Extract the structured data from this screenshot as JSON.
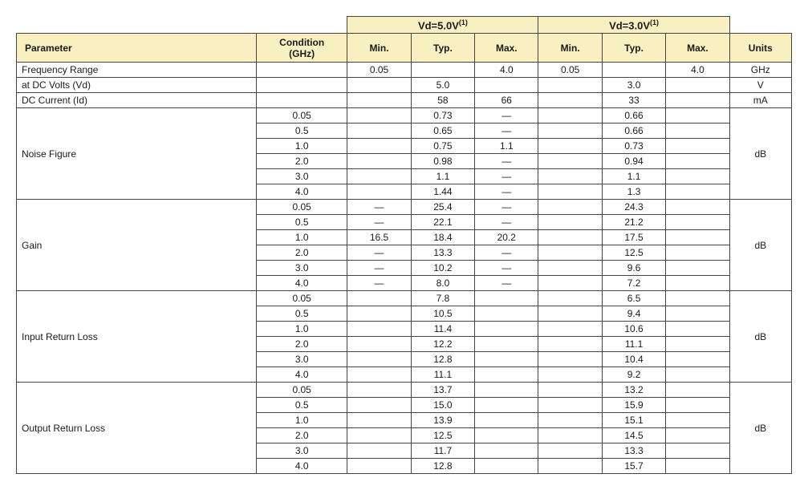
{
  "headers": {
    "vd5": "Vd=5.0V",
    "vd3": "Vd=3.0V",
    "sup": "(1)",
    "parameter": "Parameter",
    "condition": "Condition\n(GHz)",
    "min": "Min.",
    "typ": "Typ.",
    "max": "Max.",
    "units": "Units"
  },
  "dash": "—",
  "rows": {
    "freq_range": {
      "param": "Frequency Range",
      "cond": "",
      "min5": "0.05",
      "typ5": "",
      "max5": "4.0",
      "min3": "0.05",
      "typ3": "",
      "max3": "4.0",
      "units": "GHz"
    },
    "dc_volts": {
      "param": "at DC Volts (Vd)",
      "cond": "",
      "min5": "",
      "typ5": "5.0",
      "max5": "",
      "min3": "",
      "typ3": "3.0",
      "max3": "",
      "units": "V"
    },
    "dc_current": {
      "param": "DC Current (Id)",
      "cond": "",
      "min5": "",
      "typ5": "58",
      "max5": "66",
      "min3": "",
      "typ3": "33",
      "max3": "",
      "units": "mA"
    }
  },
  "groups": [
    {
      "param": "Noise Figure",
      "units": "dB",
      "rows": [
        {
          "cond": "0.05",
          "min5": "",
          "typ5": "0.73",
          "max5": "—",
          "min3": "",
          "typ3": "0.66",
          "max3": ""
        },
        {
          "cond": "0.5",
          "min5": "",
          "typ5": "0.65",
          "max5": "—",
          "min3": "",
          "typ3": "0.66",
          "max3": ""
        },
        {
          "cond": "1.0",
          "min5": "",
          "typ5": "0.75",
          "max5": "1.1",
          "min3": "",
          "typ3": "0.73",
          "max3": ""
        },
        {
          "cond": "2.0",
          "min5": "",
          "typ5": "0.98",
          "max5": "—",
          "min3": "",
          "typ3": "0.94",
          "max3": ""
        },
        {
          "cond": "3.0",
          "min5": "",
          "typ5": "1.1",
          "max5": "—",
          "min3": "",
          "typ3": "1.1",
          "max3": ""
        },
        {
          "cond": "4.0",
          "min5": "",
          "typ5": "1.44",
          "max5": "—",
          "min3": "",
          "typ3": "1.3",
          "max3": ""
        }
      ]
    },
    {
      "param": "Gain",
      "units": "dB",
      "rows": [
        {
          "cond": "0.05",
          "min5": "—",
          "typ5": "25.4",
          "max5": "—",
          "min3": "",
          "typ3": "24.3",
          "max3": ""
        },
        {
          "cond": "0.5",
          "min5": "—",
          "typ5": "22.1",
          "max5": "—",
          "min3": "",
          "typ3": "21.2",
          "max3": ""
        },
        {
          "cond": "1.0",
          "min5": "16.5",
          "typ5": "18.4",
          "max5": "20.2",
          "min3": "",
          "typ3": "17.5",
          "max3": ""
        },
        {
          "cond": "2.0",
          "min5": "—",
          "typ5": "13.3",
          "max5": "—",
          "min3": "",
          "typ3": "12.5",
          "max3": ""
        },
        {
          "cond": "3.0",
          "min5": "—",
          "typ5": "10.2",
          "max5": "—",
          "min3": "",
          "typ3": "9.6",
          "max3": ""
        },
        {
          "cond": "4.0",
          "min5": "—",
          "typ5": "8.0",
          "max5": "—",
          "min3": "",
          "typ3": "7.2",
          "max3": ""
        }
      ]
    },
    {
      "param": "Input Return Loss",
      "units": "dB",
      "rows": [
        {
          "cond": "0.05",
          "min5": "",
          "typ5": "7.8",
          "max5": "",
          "min3": "",
          "typ3": "6.5",
          "max3": ""
        },
        {
          "cond": "0.5",
          "min5": "",
          "typ5": "10.5",
          "max5": "",
          "min3": "",
          "typ3": "9.4",
          "max3": ""
        },
        {
          "cond": "1.0",
          "min5": "",
          "typ5": "11.4",
          "max5": "",
          "min3": "",
          "typ3": "10.6",
          "max3": ""
        },
        {
          "cond": "2.0",
          "min5": "",
          "typ5": "12.2",
          "max5": "",
          "min3": "",
          "typ3": "11.1",
          "max3": ""
        },
        {
          "cond": "3.0",
          "min5": "",
          "typ5": "12.8",
          "max5": "",
          "min3": "",
          "typ3": "10.4",
          "max3": ""
        },
        {
          "cond": "4.0",
          "min5": "",
          "typ5": "11.1",
          "max5": "",
          "min3": "",
          "typ3": "9.2",
          "max3": ""
        }
      ]
    },
    {
      "param": "Output Return Loss",
      "units": "dB",
      "rows": [
        {
          "cond": "0.05",
          "min5": "",
          "typ5": "13.7",
          "max5": "",
          "min3": "",
          "typ3": "13.2",
          "max3": ""
        },
        {
          "cond": "0.5",
          "min5": "",
          "typ5": "15.0",
          "max5": "",
          "min3": "",
          "typ3": "15.9",
          "max3": ""
        },
        {
          "cond": "1.0",
          "min5": "",
          "typ5": "13.9",
          "max5": "",
          "min3": "",
          "typ3": "15.1",
          "max3": ""
        },
        {
          "cond": "2.0",
          "min5": "",
          "typ5": "12.5",
          "max5": "",
          "min3": "",
          "typ3": "14.5",
          "max3": ""
        },
        {
          "cond": "3.0",
          "min5": "",
          "typ5": "11.7",
          "max5": "",
          "min3": "",
          "typ3": "13.3",
          "max3": ""
        },
        {
          "cond": "4.0",
          "min5": "",
          "typ5": "12.8",
          "max5": "",
          "min3": "",
          "typ3": "15.7",
          "max3": ""
        }
      ]
    }
  ]
}
